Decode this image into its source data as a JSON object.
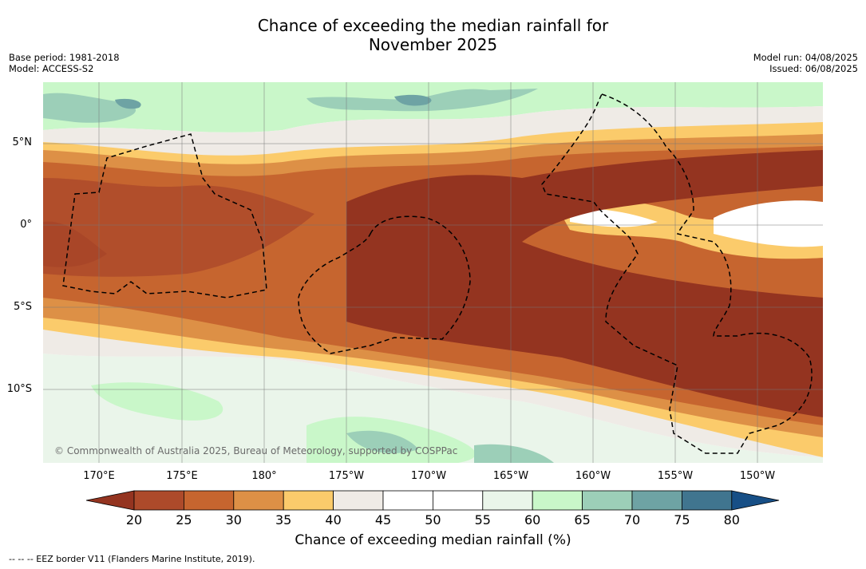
{
  "title_line1": "Chance of exceeding the median rainfall for",
  "title_line2": "November 2025",
  "meta_left": [
    "Base period: 1981-2018",
    "Model: ACCESS-S2"
  ],
  "meta_right": [
    "Model run: 04/08/2025",
    "Issued: 06/08/2025"
  ],
  "lat_labels": [
    "5°N",
    "0°",
    "5°S",
    "10°S"
  ],
  "lon_labels": [
    "170°E",
    "175°E",
    "180°",
    "175°W",
    "170°W",
    "165°W",
    "160°W",
    "155°W",
    "150°W"
  ],
  "copyright": "© Commonwealth of Australia 2025, Bureau of Meteorology, supported by COSPPac",
  "colorbar": {
    "ticks": [
      "20",
      "25",
      "30",
      "35",
      "40",
      "45",
      "50",
      "55",
      "60",
      "65",
      "70",
      "75",
      "80"
    ],
    "colors": [
      "#ad4a2a",
      "#c6652f",
      "#dd9046",
      "#fbcb6b",
      "#efebe6",
      "#ffffff",
      "#ffffff",
      "#eaf5ea",
      "#c9f7c9",
      "#9ccfb8",
      "#6ea3a4",
      "#40758f"
    ],
    "under_color": "#943420",
    "over_color": "#174f86",
    "label": "Chance of exceeding median rainfall (%)"
  },
  "legend_footer": "--  --  -- EEZ border V11 (Flanders Marine Institute, 2019)."
}
